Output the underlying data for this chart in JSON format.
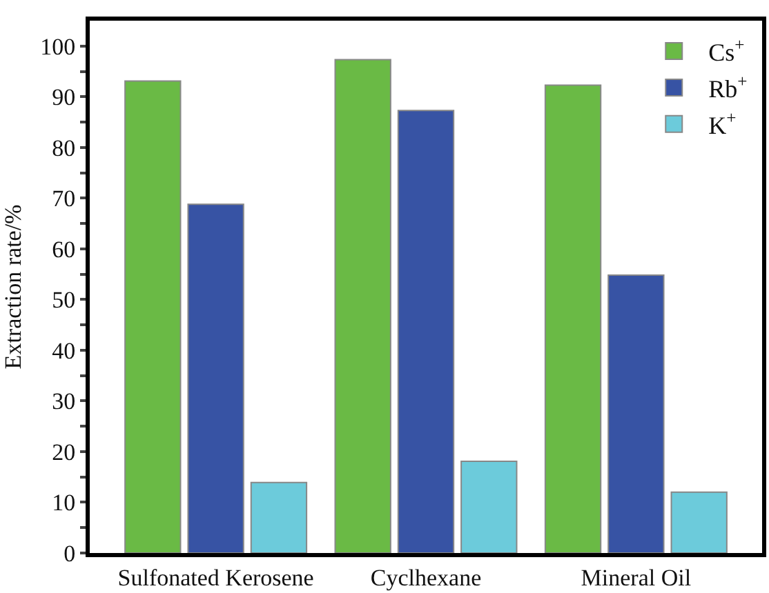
{
  "chart_data": {
    "type": "bar",
    "ylabel": "Extraction rate/%",
    "categories": [
      "Sulfonated Kerosene",
      "Cyclhexane",
      "Mineral Oil"
    ],
    "series": [
      {
        "name": "Cs$^{+}$",
        "color": "#6aba45",
        "values": [
          93.1,
          97.3,
          92.3
        ]
      },
      {
        "name": "Rb$^{+}$",
        "color": "#3753a4",
        "values": [
          68.8,
          87.3,
          54.8
        ]
      },
      {
        "name": "K$^{+}$",
        "color": "#6ccbdb",
        "values": [
          13.9,
          18.1,
          12.0
        ]
      }
    ],
    "ylim": [
      0,
      105
    ],
    "yticks": [
      0,
      {
        "value": 5,
        "label": null
      },
      10,
      {
        "value": 15,
        "label": null
      },
      20,
      {
        "value": 25,
        "label": null
      },
      30,
      {
        "value": 35,
        "label": null
      },
      40,
      {
        "value": 45,
        "label": null
      },
      50,
      {
        "value": 55,
        "label": null
      },
      60,
      {
        "value": 65,
        "label": null
      },
      70,
      {
        "value": 75,
        "label": null
      },
      80,
      {
        "value": 85,
        "label": null
      },
      90,
      {
        "value": 95,
        "label": null
      },
      100
    ],
    "legend": "top right"
  }
}
